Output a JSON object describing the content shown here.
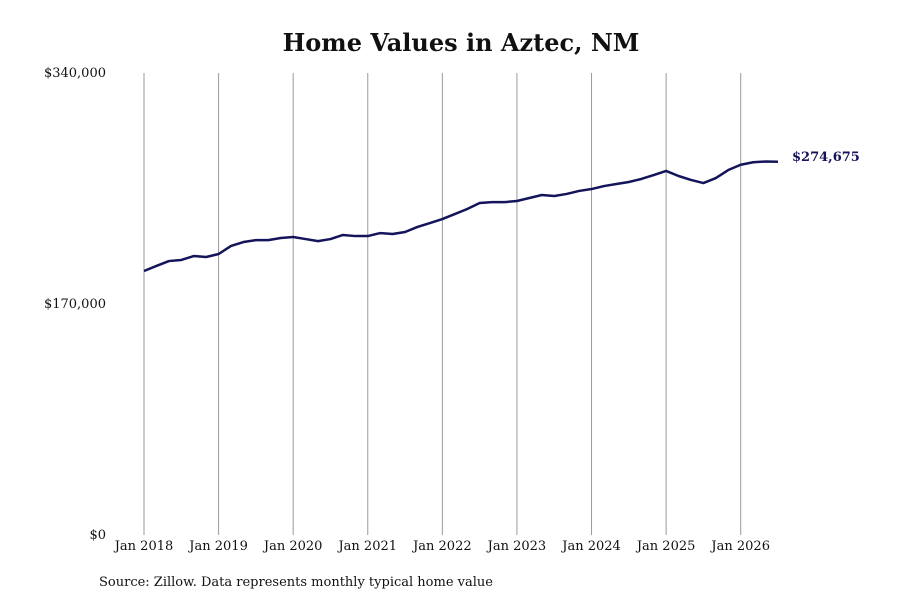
{
  "chart_data": {
    "type": "line",
    "title": "Home Values in Aztec, NM",
    "source": "Source: Zillow. Data represents monthly typical home value",
    "x": [
      "2018-01",
      "2018-03",
      "2018-05",
      "2018-07",
      "2018-09",
      "2018-11",
      "2019-01",
      "2019-03",
      "2019-05",
      "2019-07",
      "2019-09",
      "2019-11",
      "2020-01",
      "2020-03",
      "2020-05",
      "2020-07",
      "2020-09",
      "2020-11",
      "2021-01",
      "2021-03",
      "2021-05",
      "2021-07",
      "2021-09",
      "2021-11",
      "2022-01",
      "2022-03",
      "2022-05",
      "2022-07",
      "2022-09",
      "2022-11",
      "2023-01",
      "2023-03",
      "2023-05",
      "2023-07",
      "2023-09",
      "2023-11",
      "2024-01",
      "2024-03",
      "2024-05",
      "2024-07",
      "2024-09",
      "2024-11",
      "2025-01",
      "2025-03",
      "2025-05",
      "2025-07",
      "2025-09",
      "2025-11",
      "2026-01",
      "2026-03",
      "2026-05",
      "2026-07"
    ],
    "series": [
      {
        "name": "Home value",
        "color": "#14145a",
        "values": [
          194300,
          198000,
          201600,
          202400,
          205300,
          204600,
          206800,
          212700,
          215600,
          217000,
          217000,
          218600,
          219300,
          217800,
          216300,
          217800,
          220800,
          220000,
          220000,
          222200,
          221500,
          223000,
          226700,
          229600,
          232500,
          236200,
          239900,
          244300,
          245000,
          245000,
          245800,
          248000,
          250200,
          249500,
          251000,
          253200,
          254600,
          256800,
          258300,
          259800,
          262000,
          264900,
          267900,
          264200,
          261300,
          259000,
          262700,
          268600,
          272500,
          274300,
          274900,
          274675
        ],
        "value_labels": [
          null,
          null,
          null,
          null,
          null,
          null,
          null,
          null,
          null,
          null,
          null,
          null,
          null,
          null,
          null,
          null,
          null,
          null,
          null,
          null,
          null,
          null,
          null,
          null,
          null,
          null,
          null,
          null,
          null,
          null,
          null,
          null,
          null,
          null,
          null,
          null,
          null,
          null,
          null,
          null,
          null,
          null,
          null,
          null,
          null,
          null,
          null,
          null,
          null,
          null,
          null,
          "$274,675"
        ]
      }
    ],
    "xlim": [
      "2018-01",
      "2026-07"
    ],
    "xticks": [
      {
        "value": "2018-01",
        "label": "Jan 2018"
      },
      {
        "value": "2019-01",
        "label": "Jan 2019"
      },
      {
        "value": "2020-01",
        "label": "Jan 2020"
      },
      {
        "value": "2021-01",
        "label": "Jan 2021"
      },
      {
        "value": "2022-01",
        "label": "Jan 2022"
      },
      {
        "value": "2023-01",
        "label": "Jan 2023"
      },
      {
        "value": "2024-01",
        "label": "Jan 2024"
      },
      {
        "value": "2025-01",
        "label": "Jan 2025"
      },
      {
        "value": "2026-01",
        "label": "Jan 2026"
      }
    ],
    "ylim": [
      0,
      340000
    ],
    "yticks": [
      {
        "value": 0,
        "label": "$0"
      },
      {
        "value": 170000,
        "label": "$170,000"
      },
      {
        "value": 340000,
        "label": "$340,000"
      }
    ],
    "grid": "x"
  }
}
